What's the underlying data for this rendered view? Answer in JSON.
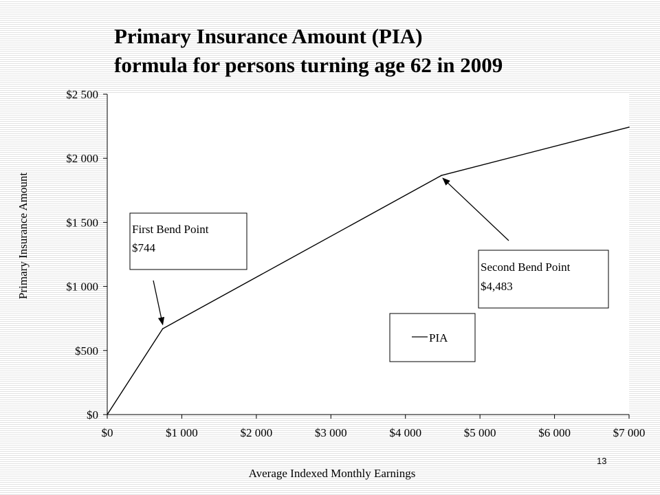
{
  "slide": {
    "title_line1": "Primary Insurance Amount (PIA)",
    "title_line2": "formula for persons turning age 62 in 2009",
    "page_number": "13"
  },
  "chart_data": {
    "type": "line",
    "title": "",
    "xlabel": "Average Indexed Monthly Earnings",
    "ylabel": "Primary Insurance Amount",
    "xlim": [
      0,
      7000
    ],
    "ylim": [
      0,
      2500
    ],
    "x_ticks": [
      0,
      1000,
      2000,
      3000,
      4000,
      5000,
      6000,
      7000
    ],
    "x_tick_labels": [
      "$0",
      "$1 000",
      "$2 000",
      "$3 000",
      "$4 000",
      "$5 000",
      "$6 000",
      "$7 000"
    ],
    "y_ticks": [
      0,
      500,
      1000,
      1500,
      2000,
      2500
    ],
    "y_tick_labels": [
      "$0",
      "$500",
      "$1 000",
      "$1 500",
      "$2 000",
      "$2 500"
    ],
    "grid": false,
    "legend": {
      "position": "bottom-center",
      "entries": [
        "PIA"
      ]
    },
    "series": [
      {
        "name": "PIA",
        "color": "#000000",
        "x": [
          0,
          744,
          4483,
          7000
        ],
        "y": [
          0,
          670,
          1866,
          2243
        ]
      }
    ],
    "annotations": [
      {
        "lines": [
          "First Bend Point",
          "$744"
        ],
        "points_to": [
          744,
          670
        ]
      },
      {
        "lines": [
          "Second Bend Point",
          "$4,483"
        ],
        "points_to": [
          4483,
          1866
        ]
      }
    ]
  }
}
